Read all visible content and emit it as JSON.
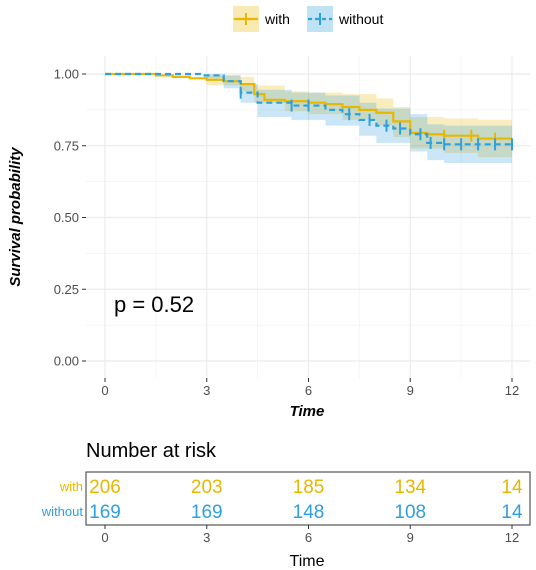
{
  "chart_data": [
    {
      "type": "line",
      "subtype": "kaplan-meier",
      "xlabel": "Time",
      "ylabel": "Survival probability",
      "xlim": [
        0,
        12
      ],
      "ylim": [
        0,
        1
      ],
      "x_ticks": [
        0,
        3,
        6,
        9,
        12
      ],
      "x_tick_labels": [
        "0",
        "3",
        "6",
        "9",
        "12"
      ],
      "y_ticks": [
        0,
        0.25,
        0.5,
        0.75,
        1.0
      ],
      "y_tick_labels": [
        "0.00",
        "0.25",
        "0.50",
        "0.75",
        "1.00"
      ],
      "grid": true,
      "legend_position": "top",
      "annotation": "p = 0.52",
      "series": [
        {
          "name": "with",
          "color": "#E7B800",
          "line_style": "solid",
          "steps": [
            [
              0,
              1.0
            ],
            [
              1.5,
              0.995
            ],
            [
              2.0,
              0.99
            ],
            [
              2.5,
              0.985
            ],
            [
              3.0,
              0.98
            ],
            [
              3.5,
              0.975
            ],
            [
              4.0,
              0.965
            ],
            [
              4.4,
              0.93
            ],
            [
              4.7,
              0.91
            ],
            [
              5.3,
              0.905
            ],
            [
              6.0,
              0.9
            ],
            [
              6.5,
              0.895
            ],
            [
              7.0,
              0.885
            ],
            [
              7.5,
              0.875
            ],
            [
              8.0,
              0.865
            ],
            [
              8.5,
              0.835
            ],
            [
              9.0,
              0.795
            ],
            [
              9.5,
              0.79
            ],
            [
              10.0,
              0.785
            ],
            [
              11.0,
              0.775
            ],
            [
              12.0,
              0.775
            ]
          ],
          "ci_lower": [
            [
              0,
              1.0
            ],
            [
              3.0,
              0.96
            ],
            [
              4.0,
              0.94
            ],
            [
              4.4,
              0.9
            ],
            [
              5.3,
              0.87
            ],
            [
              6.0,
              0.86
            ],
            [
              7.0,
              0.84
            ],
            [
              8.0,
              0.82
            ],
            [
              8.5,
              0.78
            ],
            [
              9.0,
              0.74
            ],
            [
              10.0,
              0.725
            ],
            [
              11.0,
              0.71
            ],
            [
              12.0,
              0.71
            ]
          ],
          "ci_upper": [
            [
              0,
              1.0
            ],
            [
              3.0,
              0.995
            ],
            [
              4.0,
              0.99
            ],
            [
              4.4,
              0.96
            ],
            [
              5.3,
              0.94
            ],
            [
              6.0,
              0.935
            ],
            [
              7.0,
              0.93
            ],
            [
              8.0,
              0.915
            ],
            [
              8.5,
              0.885
            ],
            [
              9.0,
              0.85
            ],
            [
              10.0,
              0.845
            ],
            [
              11.0,
              0.84
            ],
            [
              12.0,
              0.84
            ]
          ],
          "censor_x": [
            10.0,
            10.8,
            11.5
          ]
        },
        {
          "name": "without",
          "color": "#2E9FDF",
          "line_style": "dashed",
          "steps": [
            [
              0,
              1.0
            ],
            [
              2.9,
              0.995
            ],
            [
              3.5,
              0.975
            ],
            [
              4.0,
              0.935
            ],
            [
              4.5,
              0.9
            ],
            [
              5.5,
              0.89
            ],
            [
              6.5,
              0.875
            ],
            [
              7.0,
              0.86
            ],
            [
              7.5,
              0.84
            ],
            [
              8.0,
              0.82
            ],
            [
              8.5,
              0.81
            ],
            [
              9.0,
              0.79
            ],
            [
              9.5,
              0.76
            ],
            [
              10.0,
              0.755
            ],
            [
              12.0,
              0.755
            ]
          ],
          "ci_lower": [
            [
              0,
              1.0
            ],
            [
              2.9,
              0.985
            ],
            [
              3.5,
              0.95
            ],
            [
              4.0,
              0.9
            ],
            [
              4.5,
              0.85
            ],
            [
              5.5,
              0.84
            ],
            [
              6.5,
              0.82
            ],
            [
              7.5,
              0.785
            ],
            [
              8.0,
              0.76
            ],
            [
              9.0,
              0.73
            ],
            [
              9.5,
              0.7
            ],
            [
              10.0,
              0.69
            ],
            [
              12.0,
              0.69
            ]
          ],
          "ci_upper": [
            [
              0,
              1.0
            ],
            [
              2.9,
              1.0
            ],
            [
              3.5,
              0.995
            ],
            [
              4.0,
              0.965
            ],
            [
              4.5,
              0.945
            ],
            [
              5.5,
              0.935
            ],
            [
              6.5,
              0.925
            ],
            [
              7.5,
              0.9
            ],
            [
              8.0,
              0.88
            ],
            [
              9.0,
              0.86
            ],
            [
              9.5,
              0.825
            ],
            [
              10.0,
              0.82
            ],
            [
              12.0,
              0.82
            ]
          ],
          "censor_x": [
            4.0,
            5.5,
            6.0,
            7.2,
            7.8,
            8.3,
            8.7,
            9.3,
            9.6,
            10.0,
            10.5,
            11.0,
            11.5,
            12.0
          ]
        }
      ]
    },
    {
      "type": "table",
      "title": "Number at risk",
      "xlabel": "Time",
      "x_ticks": [
        0,
        3,
        6,
        9,
        12
      ],
      "x_tick_labels": [
        "0",
        "3",
        "6",
        "9",
        "12"
      ],
      "rows": [
        {
          "name": "with",
          "color": "#E7B800",
          "values": [
            "206",
            "203",
            "185",
            "134",
            "14"
          ]
        },
        {
          "name": "without",
          "color": "#2E9FDF",
          "values": [
            "169",
            "169",
            "148",
            "108",
            "14"
          ]
        }
      ]
    }
  ]
}
